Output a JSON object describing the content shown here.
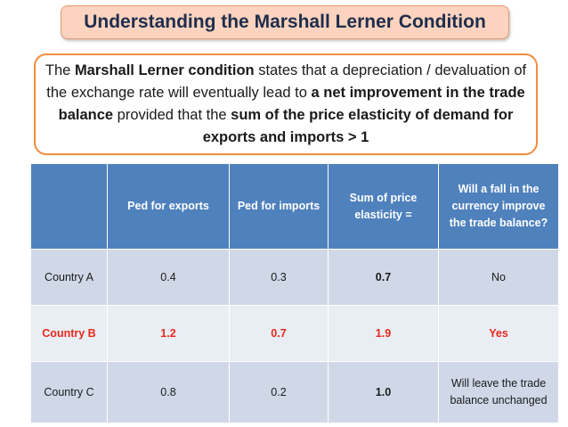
{
  "title": "Understanding the Marshall Lerner Condition",
  "definition": {
    "part1": "The ",
    "bold1": "Marshall Lerner condition",
    "part2": " states that a depreciation / devaluation of the exchange rate will eventually lead to ",
    "bold2": "a net improvement in the trade balance",
    "part3": " provided that the ",
    "bold3": "sum of the price elasticity of demand for exports and imports > 1"
  },
  "table": {
    "headers": [
      "",
      "Ped for exports",
      "Ped for imports",
      "Sum of price elasticity  =",
      "Will a fall in the currency improve the trade balance?"
    ],
    "rows": [
      {
        "country": "Country A",
        "exports": "0.4",
        "imports": "0.3",
        "sum": "0.7",
        "answer": "No"
      },
      {
        "country": "Country B",
        "exports": "1.2",
        "imports": "0.7",
        "sum": "1.9",
        "answer": "Yes"
      },
      {
        "country": "Country C",
        "exports": "0.8",
        "imports": "0.2",
        "sum": "1.0",
        "answer": "Will leave the trade balance unchanged"
      }
    ]
  },
  "colors": {
    "title_bg": "#fbd3be",
    "definition_border": "#f28c3e",
    "header_bg": "#4f81bd",
    "row_highlight": "#e8291c"
  }
}
